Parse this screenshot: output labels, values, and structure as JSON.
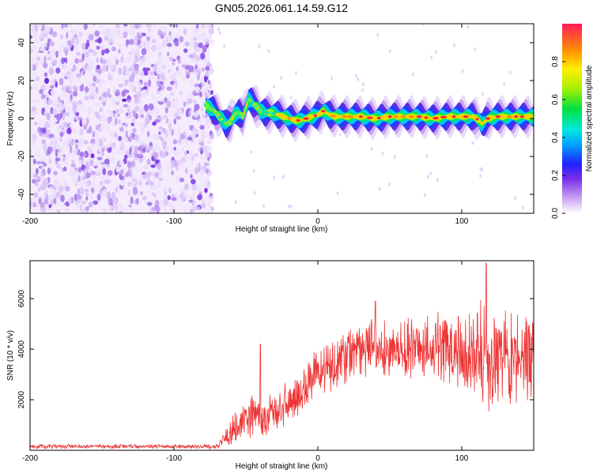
{
  "title": "GN05.2026.061.14.59.G12",
  "chart_data": [
    {
      "type": "heatmap",
      "xlabel": "Height of straight line (km)",
      "ylabel": "Frequency (Hz)",
      "xlim": [
        -200,
        150
      ],
      "ylim": [
        -50,
        50
      ],
      "xticks": [
        -200,
        -100,
        0,
        100
      ],
      "yticks": [
        -40,
        -20,
        0,
        20,
        40
      ],
      "colorbar": {
        "label": "Normalized spectral amplitude",
        "range": [
          0,
          1
        ],
        "ticks": [
          "0.0",
          "0.2",
          "0.4",
          "0.6",
          "0.8"
        ]
      },
      "noise_region_x": [
        -200,
        -75
      ],
      "ridge": {
        "x": [
          -78,
          -74,
          -72,
          -70,
          -67,
          -65,
          -63,
          -60,
          -58,
          -55,
          -52,
          -50,
          -48,
          -46,
          -44,
          -42,
          -40,
          -36,
          -32,
          -28,
          -24,
          -20,
          -16,
          -12,
          -8,
          -4,
          0,
          2,
          4,
          8,
          12,
          20,
          30,
          40,
          50,
          60,
          70,
          80,
          90,
          100,
          105,
          108,
          110,
          112,
          114,
          118,
          125,
          135,
          145,
          150
        ],
        "frequency": [
          7,
          5,
          4,
          2,
          0,
          -2,
          -3,
          -1,
          2,
          3,
          1,
          6,
          10,
          9,
          7,
          6,
          4,
          3,
          3,
          2,
          1,
          0,
          -1,
          -1,
          0,
          1,
          2,
          3,
          4,
          2,
          1,
          1,
          1,
          0,
          1,
          1,
          1,
          0,
          1,
          1,
          1,
          1,
          0,
          -1,
          -3,
          0,
          1,
          1,
          1,
          1
        ]
      }
    },
    {
      "type": "line",
      "xlabel": "Height of straight line (km)",
      "ylabel": "SNR (10 * v/v)",
      "xlim": [
        -200,
        150
      ],
      "ylim": [
        0,
        7500
      ],
      "xticks": [
        -200,
        -100,
        0,
        100
      ],
      "yticks": [
        2000,
        4000,
        6000
      ],
      "series": [
        {
          "name": "SNR",
          "color": "#ee3333",
          "envelope": {
            "x": [
              -200,
              -100,
              -70,
              -65,
              -60,
              -55,
              -50,
              -45,
              -40,
              -35,
              -30,
              -25,
              -20,
              -15,
              -10,
              -5,
              0,
              10,
              20,
              30,
              40,
              50,
              60,
              70,
              80,
              90,
              100,
              110,
              115,
              120,
              130,
              140,
              150
            ],
            "center": [
              150,
              150,
              150,
              400,
              700,
              900,
              1200,
              1500,
              1300,
              1400,
              1500,
              1700,
              2000,
              2200,
              2500,
              2800,
              3100,
              3400,
              3700,
              3900,
              4000,
              4000,
              4000,
              4000,
              4050,
              4050,
              4000,
              3800,
              3600,
              3700,
              3900,
              3600,
              3700
            ],
            "spread": [
              100,
              100,
              120,
              500,
              700,
              800,
              900,
              1300,
              900,
              900,
              900,
              900,
              1000,
              1000,
              1100,
              1200,
              1300,
              1200,
              1200,
              1300,
              1300,
              1300,
              1400,
              1500,
              1500,
              1700,
              1900,
              2300,
              2600,
              2400,
              2200,
              2200,
              2000
            ]
          },
          "peaks": [
            {
              "x": -40,
              "y": 4200
            },
            {
              "x": 40,
              "y": 5900
            },
            {
              "x": 117,
              "y": 7400
            }
          ]
        }
      ]
    }
  ]
}
